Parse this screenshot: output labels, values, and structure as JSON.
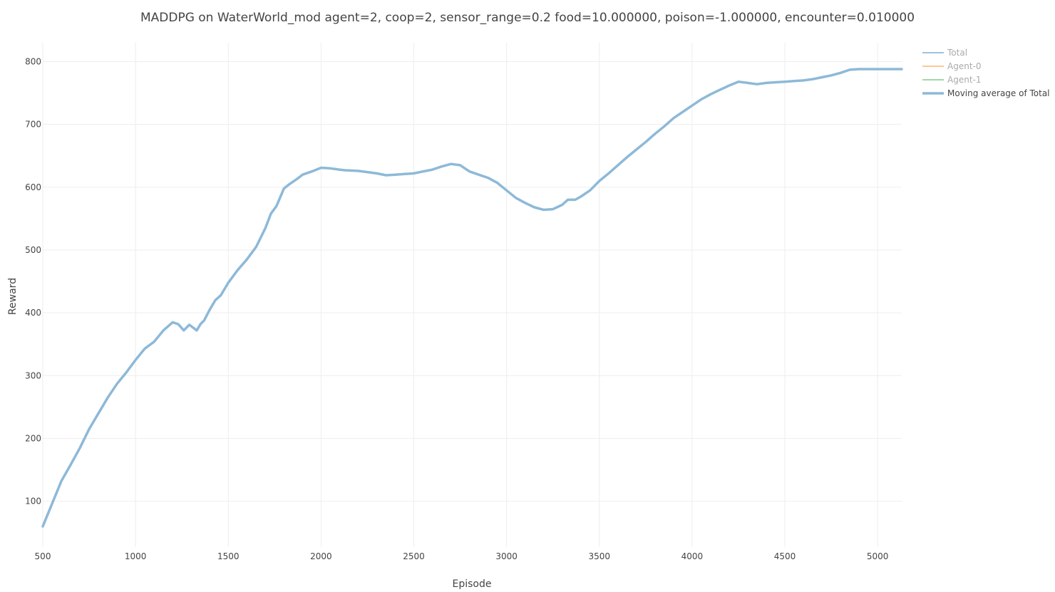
{
  "chart_data": {
    "type": "line",
    "title": "MADDPG on WaterWorld_mod agent=2, coop=2, sensor_range=0.2 food=10.000000, poison=-1.000000, encounter=0.010000",
    "xlabel": "Episode",
    "ylabel": "Reward",
    "xlim": [
      500,
      5130
    ],
    "ylim": [
      27,
      830
    ],
    "xticks": [
      500,
      1000,
      1500,
      2000,
      2500,
      3000,
      3500,
      4000,
      4500,
      5000
    ],
    "yticks": [
      100,
      200,
      300,
      400,
      500,
      600,
      700,
      800
    ],
    "grid": true,
    "legend_position": "top-right",
    "legend": [
      {
        "name": "Total",
        "color": "#8db9d8",
        "inactive": true
      },
      {
        "name": "Agent-0",
        "color": "#ffbe86",
        "inactive": true
      },
      {
        "name": "Agent-1",
        "color": "#95cf95",
        "inactive": true
      },
      {
        "name": "Moving average of Total",
        "color": "#8db9d8",
        "inactive": false
      }
    ],
    "series": [
      {
        "name": "Moving average of Total",
        "color": "#8db9d8",
        "x": [
          500,
          600,
          650,
          700,
          750,
          800,
          850,
          900,
          950,
          1000,
          1050,
          1100,
          1150,
          1200,
          1230,
          1260,
          1290,
          1330,
          1350,
          1370,
          1400,
          1430,
          1460,
          1500,
          1550,
          1600,
          1650,
          1700,
          1730,
          1760,
          1800,
          1830,
          1870,
          1900,
          1950,
          2000,
          2050,
          2100,
          2130,
          2200,
          2250,
          2300,
          2350,
          2400,
          2450,
          2500,
          2550,
          2600,
          2650,
          2700,
          2750,
          2800,
          2850,
          2900,
          2950,
          3000,
          3050,
          3100,
          3150,
          3200,
          3250,
          3300,
          3330,
          3370,
          3400,
          3450,
          3500,
          3550,
          3600,
          3650,
          3700,
          3750,
          3800,
          3850,
          3900,
          3950,
          4000,
          4050,
          4100,
          4150,
          4200,
          4250,
          4300,
          4350,
          4400,
          4450,
          4500,
          4550,
          4600,
          4650,
          4700,
          4750,
          4800,
          4850,
          4900,
          4950,
          5000,
          5050,
          5100,
          5130
        ],
        "values": [
          60,
          132,
          158,
          185,
          215,
          240,
          265,
          287,
          305,
          325,
          343,
          354,
          372,
          385,
          382,
          372,
          381,
          372,
          382,
          388,
          405,
          420,
          428,
          448,
          468,
          485,
          505,
          535,
          558,
          570,
          598,
          605,
          613,
          620,
          625,
          631,
          630,
          628,
          627,
          626,
          624,
          622,
          619,
          620,
          621,
          622,
          625,
          628,
          633,
          637,
          635,
          625,
          620,
          615,
          607,
          595,
          583,
          575,
          568,
          564,
          565,
          572,
          580,
          580,
          585,
          595,
          610,
          622,
          635,
          648,
          660,
          672,
          685,
          697,
          710,
          720,
          730,
          740,
          748,
          755,
          762,
          768,
          766,
          764,
          766,
          767,
          768,
          769,
          770,
          772,
          775,
          778,
          782,
          787,
          788,
          788,
          788,
          788,
          788,
          788
        ]
      }
    ]
  }
}
